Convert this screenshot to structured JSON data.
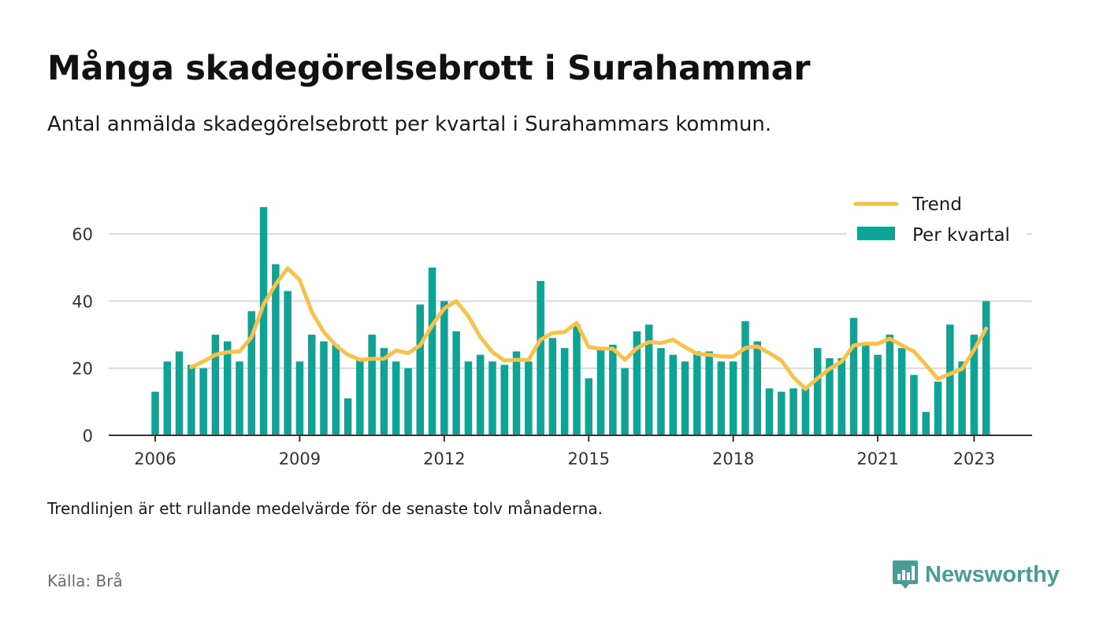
{
  "title": "Många skadegörelsebrott i Surahammar",
  "subtitle": "Antal anmälda skadegörelsebrott per kvartal i Surahammars kommun.",
  "note": "Trendlinjen är ett rullande medelvärde för de senaste tolv månaderna.",
  "source": "Källa: Brå",
  "brand": "Newsworthy",
  "colors": {
    "bar": "#0fa396",
    "trend": "#f6c24c",
    "grid": "#d9d9d9",
    "axis": "#333333",
    "brand": "#4c9c96"
  },
  "chart_data": {
    "type": "bar",
    "x_unit": "quarter",
    "ylim": [
      0,
      70
    ],
    "grid": true,
    "legend_position": "top-right",
    "x_ticks": [
      "2006",
      "2009",
      "2012",
      "2015",
      "2018",
      "2021",
      "2023"
    ],
    "y_ticks": [
      "0",
      "20",
      "40",
      "60"
    ],
    "categories": [
      "2006 Q1",
      "2006 Q2",
      "2006 Q3",
      "2006 Q4",
      "2007 Q1",
      "2007 Q2",
      "2007 Q3",
      "2007 Q4",
      "2008 Q1",
      "2008 Q2",
      "2008 Q3",
      "2008 Q4",
      "2009 Q1",
      "2009 Q2",
      "2009 Q3",
      "2009 Q4",
      "2010 Q1",
      "2010 Q2",
      "2010 Q3",
      "2010 Q4",
      "2011 Q1",
      "2011 Q2",
      "2011 Q3",
      "2011 Q4",
      "2012 Q1",
      "2012 Q2",
      "2012 Q3",
      "2012 Q4",
      "2013 Q1",
      "2013 Q2",
      "2013 Q3",
      "2013 Q4",
      "2014 Q1",
      "2014 Q2",
      "2014 Q3",
      "2014 Q4",
      "2015 Q1",
      "2015 Q2",
      "2015 Q3",
      "2015 Q4",
      "2016 Q1",
      "2016 Q2",
      "2016 Q3",
      "2016 Q4",
      "2017 Q1",
      "2017 Q2",
      "2017 Q3",
      "2017 Q4",
      "2018 Q1",
      "2018 Q2",
      "2018 Q3",
      "2018 Q4",
      "2019 Q1",
      "2019 Q2",
      "2019 Q3",
      "2019 Q4",
      "2020 Q1",
      "2020 Q2",
      "2020 Q3",
      "2020 Q4",
      "2021 Q1",
      "2021 Q2",
      "2021 Q3",
      "2021 Q4",
      "2022 Q1",
      "2022 Q2",
      "2022 Q3",
      "2022 Q4",
      "2023 Q1",
      "2023 Q2"
    ],
    "series": [
      {
        "name": "Per kvartal",
        "type": "bar",
        "values": [
          13,
          22,
          25,
          21,
          20,
          30,
          28,
          22,
          37,
          68,
          51,
          43,
          22,
          30,
          28,
          27,
          11,
          23,
          30,
          26,
          22,
          20,
          39,
          50,
          40,
          31,
          22,
          24,
          22,
          21,
          25,
          22,
          46,
          29,
          26,
          33,
          17,
          26,
          27,
          20,
          31,
          33,
          26,
          24,
          22,
          25,
          25,
          22,
          22,
          34,
          28,
          14,
          13,
          14,
          14,
          26,
          23,
          23,
          35,
          27,
          24,
          30,
          26,
          18,
          7,
          16,
          33,
          22,
          30,
          40
        ]
      },
      {
        "name": "Trend",
        "type": "line",
        "values": [
          null,
          null,
          null,
          20.3,
          22.0,
          24.0,
          24.8,
          25.0,
          29.3,
          39.0,
          45.0,
          49.8,
          46.3,
          36.8,
          30.8,
          26.8,
          24.0,
          22.5,
          22.8,
          22.8,
          25.3,
          24.5,
          26.8,
          32.8,
          37.8,
          40.0,
          35.5,
          29.3,
          24.8,
          22.3,
          22.5,
          22.5,
          28.5,
          30.5,
          30.8,
          33.5,
          26.3,
          25.8,
          25.8,
          22.5,
          26.0,
          27.8,
          27.5,
          28.5,
          26.3,
          24.3,
          24.0,
          23.5,
          23.5,
          26.0,
          26.5,
          24.5,
          22.3,
          17.3,
          13.8,
          17.0,
          19.8,
          22.0,
          26.8,
          27.3,
          27.3,
          28.8,
          26.8,
          25.0,
          21.0,
          16.8,
          18.3,
          19.8,
          25.5,
          31.8
        ]
      }
    ]
  }
}
